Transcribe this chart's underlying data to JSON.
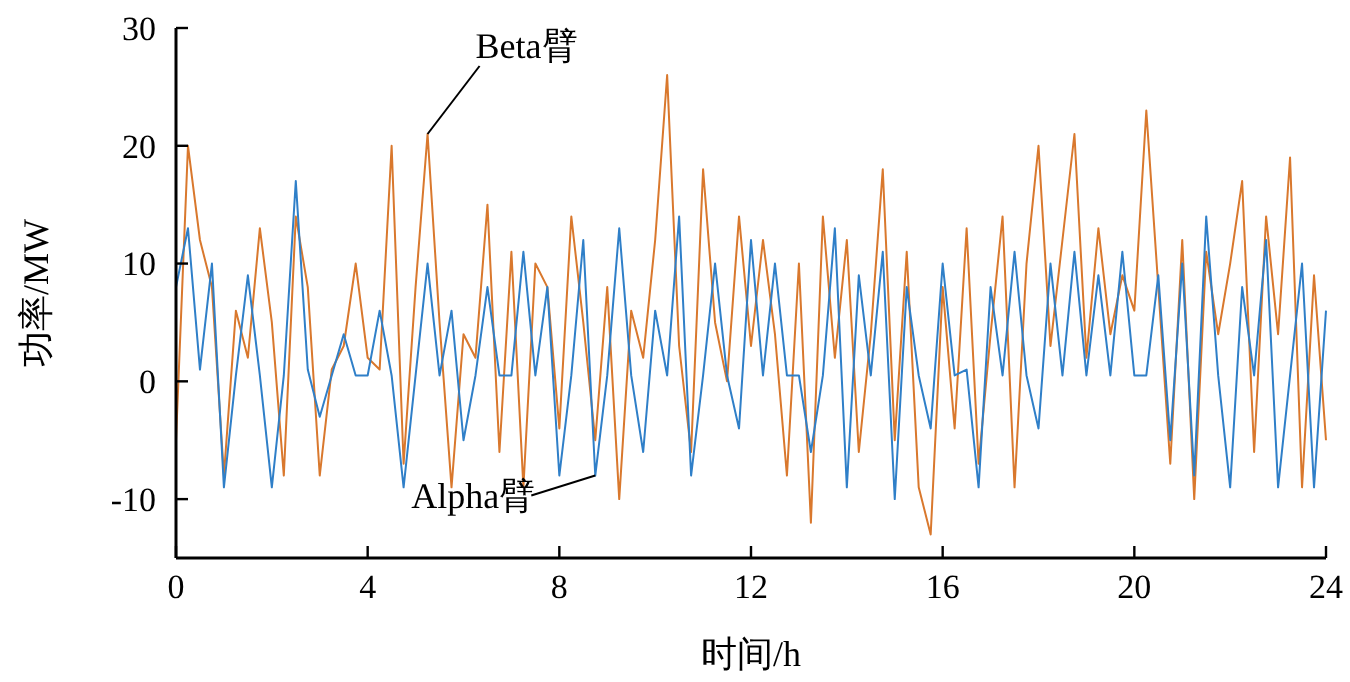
{
  "chart_data": {
    "type": "line",
    "xlabel": "时间/h",
    "ylabel": "功率/MW",
    "x": [
      0,
      0.25,
      0.5,
      0.75,
      1,
      1.25,
      1.5,
      1.75,
      2,
      2.25,
      2.5,
      2.75,
      3,
      3.25,
      3.5,
      3.75,
      4,
      4.25,
      4.5,
      4.75,
      5,
      5.25,
      5.5,
      5.75,
      6,
      6.25,
      6.5,
      6.75,
      7,
      7.25,
      7.5,
      7.75,
      8,
      8.25,
      8.5,
      8.75,
      9,
      9.25,
      9.5,
      9.75,
      10,
      10.25,
      10.5,
      10.75,
      11,
      11.25,
      11.5,
      11.75,
      12,
      12.25,
      12.5,
      12.75,
      13,
      13.25,
      13.5,
      13.75,
      14,
      14.25,
      14.5,
      14.75,
      15,
      15.25,
      15.5,
      15.75,
      16,
      16.25,
      16.5,
      16.75,
      17,
      17.25,
      17.5,
      17.75,
      18,
      18.25,
      18.5,
      18.75,
      19,
      19.25,
      19.5,
      19.75,
      20,
      20.25,
      20.5,
      20.75,
      21,
      21.25,
      21.5,
      21.75,
      22,
      22.25,
      22.5,
      22.75,
      23,
      23.25,
      23.5,
      23.75,
      24
    ],
    "series": [
      {
        "color": "#d9782d",
        "values": [
          -5,
          20,
          12,
          8,
          -8,
          6,
          2,
          13,
          5,
          -8,
          14,
          8,
          -8,
          1,
          3,
          10,
          2,
          1,
          20,
          -7,
          8,
          21,
          5,
          -9,
          4,
          2,
          15,
          -6,
          11,
          -9,
          10,
          8,
          -4,
          14,
          5,
          -5,
          8,
          -10,
          6,
          2,
          12,
          26,
          3,
          -6,
          18,
          5,
          0,
          14,
          3,
          12,
          4,
          -8,
          10,
          -12,
          14,
          2,
          12,
          -6,
          4,
          18,
          -5,
          11,
          -9,
          -13,
          8,
          -4,
          13,
          -7,
          4,
          14,
          -9,
          10,
          20,
          3,
          12,
          21,
          2,
          13,
          4,
          9,
          6,
          23,
          8,
          -7,
          12,
          -10,
          11,
          4,
          10,
          17,
          -6,
          14,
          4,
          19,
          -9,
          9,
          -5
        ]
      },
      {
        "color": "#2f7fc8",
        "values": [
          8,
          13,
          1,
          10,
          -9,
          0.5,
          9,
          0.5,
          -9,
          0.5,
          17,
          1,
          -3,
          0.5,
          4,
          0.5,
          0.5,
          6,
          0.5,
          -9,
          0.5,
          10,
          0.5,
          6,
          -5,
          0.5,
          8,
          0.5,
          0.5,
          11,
          0.5,
          8,
          -8,
          0.5,
          12,
          -8,
          0.5,
          13,
          0.5,
          -6,
          6,
          0.5,
          14,
          -8,
          0.5,
          10,
          0.5,
          -4,
          12,
          0.5,
          10,
          0.5,
          0.5,
          -6,
          0.5,
          13,
          -9,
          9,
          0.5,
          11,
          -10,
          8,
          0.5,
          -4,
          10,
          0.5,
          1,
          -9,
          8,
          0.5,
          11,
          0.5,
          -4,
          10,
          0.5,
          11,
          0.5,
          9,
          0.5,
          11,
          0.5,
          0.5,
          9,
          -5,
          10,
          -8,
          14,
          0.5,
          -9,
          8,
          0.5,
          12,
          -9,
          0.5,
          10,
          -9,
          6
        ]
      }
    ],
    "annotations": [
      {
        "text": "Beta臂",
        "x": 5.25,
        "y": 21
      },
      {
        "text": "Alpha臂",
        "x": 8.75,
        "y": -8
      }
    ],
    "xlim": [
      0,
      24
    ],
    "xticks": [
      0,
      4,
      8,
      12,
      16,
      20,
      24
    ],
    "ylim": [
      -15,
      30
    ],
    "yticks": [
      -10,
      0,
      10,
      20,
      30
    ],
    "grid": false
  }
}
